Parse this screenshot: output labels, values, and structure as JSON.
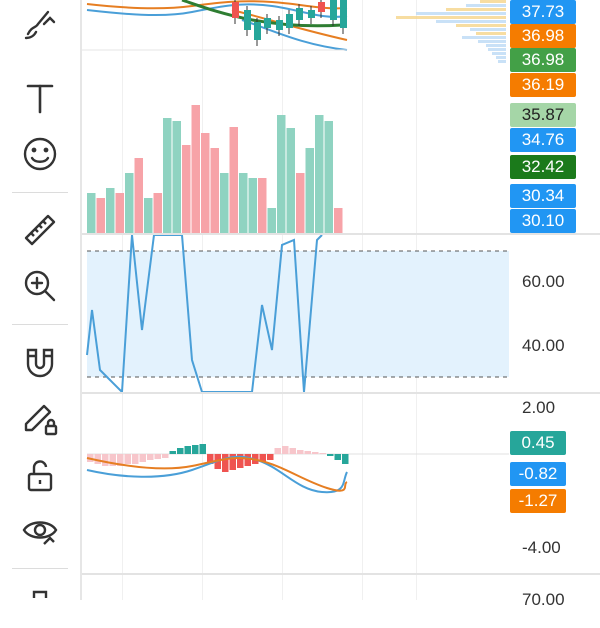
{
  "toolbar": {
    "tools": [
      {
        "name": "brush-icon"
      },
      {
        "name": "text-icon"
      },
      {
        "name": "emoji-icon"
      },
      {
        "name": "ruler-icon"
      },
      {
        "name": "zoom-in-icon"
      },
      {
        "name": "magnet-icon"
      },
      {
        "name": "lock-drawings-icon"
      },
      {
        "name": "unlock-icon"
      },
      {
        "name": "hide-drawings-icon"
      }
    ]
  },
  "price_scale": {
    "tags": [
      {
        "label": "37.73",
        "color": "#2196f3"
      },
      {
        "label": "36.98",
        "color": "#f57c00"
      },
      {
        "label": "36.98",
        "color": "#43a047"
      },
      {
        "label": "36.19",
        "color": "#f57c00"
      },
      {
        "label": "35.87",
        "color": "#a5d6a7",
        "text_color": "#222222"
      },
      {
        "label": "34.76",
        "color": "#2196f3"
      },
      {
        "label": "32.42",
        "color": "#1b7a1b"
      },
      {
        "label": "30.34",
        "color": "#2196f3"
      },
      {
        "label": "30.10",
        "color": "#2196f3"
      }
    ]
  },
  "oscillator": {
    "labels": [
      "60.00",
      "40.00"
    ]
  },
  "macd": {
    "axis_labels": {
      "top": "2.00",
      "bottom": "-4.00"
    },
    "tags": [
      {
        "label": "0.45",
        "color": "#26a69a"
      },
      {
        "label": "-0.82",
        "color": "#2196f3"
      },
      {
        "label": "-1.27",
        "color": "#f57c00"
      }
    ],
    "next_label": "70.00"
  },
  "colors": {
    "up": "#26a69a",
    "down": "#ef5350",
    "vol_up": "#8fd3c1",
    "vol_down": "#f7a3a8",
    "line_blue": "#4a9fd8",
    "line_orange": "#e67e22",
    "band_fill": "#e3f2fd"
  }
}
